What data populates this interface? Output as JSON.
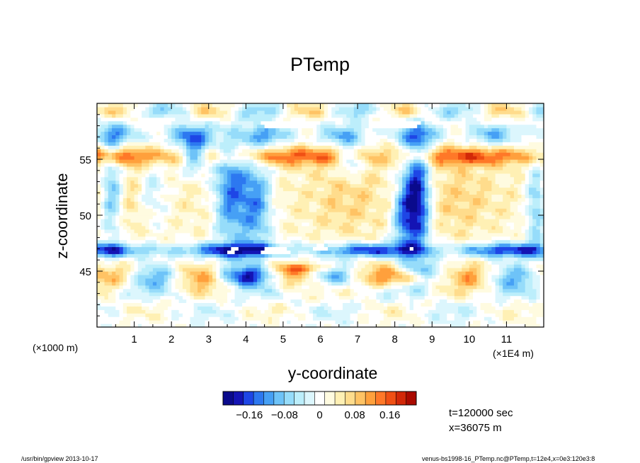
{
  "chart_data": {
    "type": "heatmap",
    "title": "PTemp",
    "xlabel": "y-coordinate",
    "ylabel": "z-coordinate",
    "x_unit": "(×1E4 m)",
    "y_unit": "(×1000 m)",
    "xlim": [
      0,
      12
    ],
    "ylim": [
      40,
      60
    ],
    "x_ticks": [
      1,
      2,
      3,
      4,
      5,
      6,
      7,
      8,
      9,
      10,
      11
    ],
    "y_ticks": [
      45,
      50,
      55
    ],
    "colorbar": {
      "range": [
        -0.22,
        0.22
      ],
      "tick_values": [
        -0.16,
        -0.08,
        0,
        0.08,
        0.16
      ],
      "tick_labels": [
        "−0.16",
        "−0.08",
        "0",
        "0.08",
        "0.16"
      ],
      "colors": [
        "#0a0a8c",
        "#1414b4",
        "#1e46e6",
        "#2d78f0",
        "#46a0f5",
        "#6ec3f8",
        "#96dcfa",
        "#bceefb",
        "#dcf6fd",
        "#ffffff",
        "#fffbe0",
        "#fff0b4",
        "#ffdc8c",
        "#ffc364",
        "#ffa03c",
        "#ff7828",
        "#f05014",
        "#d22808",
        "#aa0a00"
      ]
    },
    "annotations": [
      "t=120000 sec",
      "x=36075 m"
    ]
  },
  "footer": {
    "left": "/usr/bin/gpview   2013-10-17",
    "right": "venus-bs1998-16_PTemp.nc@PTemp,t=12e4,x=0e3:120e3:8"
  }
}
